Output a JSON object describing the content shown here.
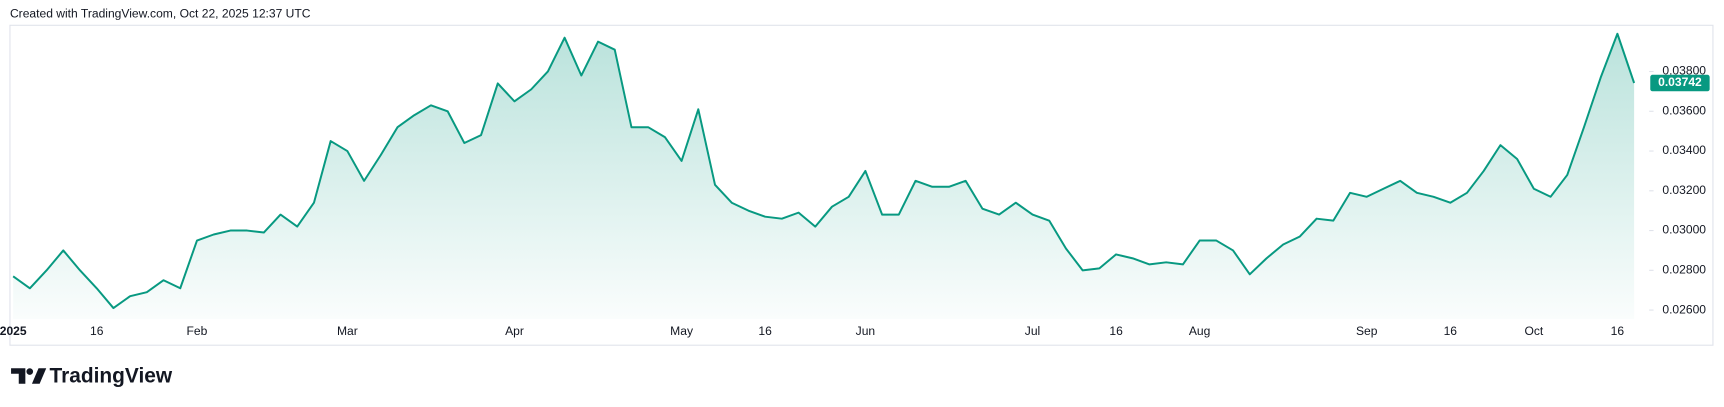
{
  "header": {
    "credit": "Created with TradingView.com, Oct 22, 2025 12:37 UTC"
  },
  "footer": {
    "brand": "TradingView"
  },
  "chart_data": {
    "type": "area",
    "categories": [
      "2025",
      null,
      null,
      null,
      null,
      "16",
      null,
      null,
      null,
      null,
      null,
      "Feb",
      null,
      null,
      null,
      null,
      null,
      null,
      null,
      null,
      "Mar",
      null,
      null,
      null,
      null,
      null,
      null,
      null,
      null,
      null,
      "Apr",
      null,
      null,
      null,
      null,
      null,
      null,
      null,
      null,
      null,
      "May",
      null,
      null,
      null,
      null,
      "16",
      null,
      null,
      null,
      null,
      null,
      "Jun",
      null,
      null,
      null,
      null,
      null,
      null,
      null,
      null,
      null,
      "Jul",
      null,
      null,
      null,
      null,
      "16",
      null,
      null,
      null,
      null,
      "Aug",
      null,
      null,
      null,
      null,
      null,
      null,
      null,
      null,
      null,
      "Sep",
      null,
      null,
      null,
      null,
      "16",
      null,
      null,
      null,
      null,
      "Oct",
      null,
      null,
      null,
      null,
      "16",
      null
    ],
    "values": [
      0.0277,
      0.0271,
      0.028,
      0.029,
      0.028,
      0.0271,
      0.0261,
      0.0267,
      0.0269,
      0.0275,
      0.0271,
      0.0295,
      0.0298,
      0.03,
      0.03,
      0.0299,
      0.0308,
      0.0302,
      0.0314,
      0.0345,
      0.034,
      0.0325,
      0.0338,
      0.0352,
      0.0358,
      0.0363,
      0.036,
      0.0344,
      0.0348,
      0.0374,
      0.0365,
      0.0371,
      0.038,
      0.0397,
      0.0378,
      0.0395,
      0.0391,
      0.0352,
      0.0352,
      0.0347,
      0.0335,
      0.0361,
      0.0323,
      0.0314,
      0.031,
      0.0307,
      0.0306,
      0.0309,
      0.0302,
      0.0312,
      0.0317,
      0.033,
      0.0308,
      0.0308,
      0.0325,
      0.0322,
      0.0322,
      0.0325,
      0.0311,
      0.0308,
      0.0314,
      0.0308,
      0.0305,
      0.0291,
      0.028,
      0.0281,
      0.0288,
      0.0286,
      0.0283,
      0.0284,
      0.0283,
      0.0295,
      0.0295,
      0.029,
      0.0278,
      0.0286,
      0.0293,
      0.0297,
      0.0306,
      0.0305,
      0.0319,
      0.0317,
      0.0321,
      0.0325,
      0.0319,
      0.0317,
      0.0314,
      0.0319,
      0.033,
      0.0343,
      0.0336,
      0.0321,
      0.0317,
      0.0328,
      0.0352,
      0.0377,
      0.0399,
      0.03742
    ],
    "color": "#089981",
    "ylim": [
      0.02556,
      0.04027
    ],
    "yticks": [
      {
        "value": 0.026,
        "label": "0.02600"
      },
      {
        "value": 0.028,
        "label": "0.02800"
      },
      {
        "value": 0.03,
        "label": "0.03000"
      },
      {
        "value": 0.032,
        "label": "0.03200"
      },
      {
        "value": 0.034,
        "label": "0.03400"
      },
      {
        "value": 0.036,
        "label": "0.03600"
      },
      {
        "value": 0.038,
        "label": "0.03800"
      }
    ],
    "grid": false
  }
}
